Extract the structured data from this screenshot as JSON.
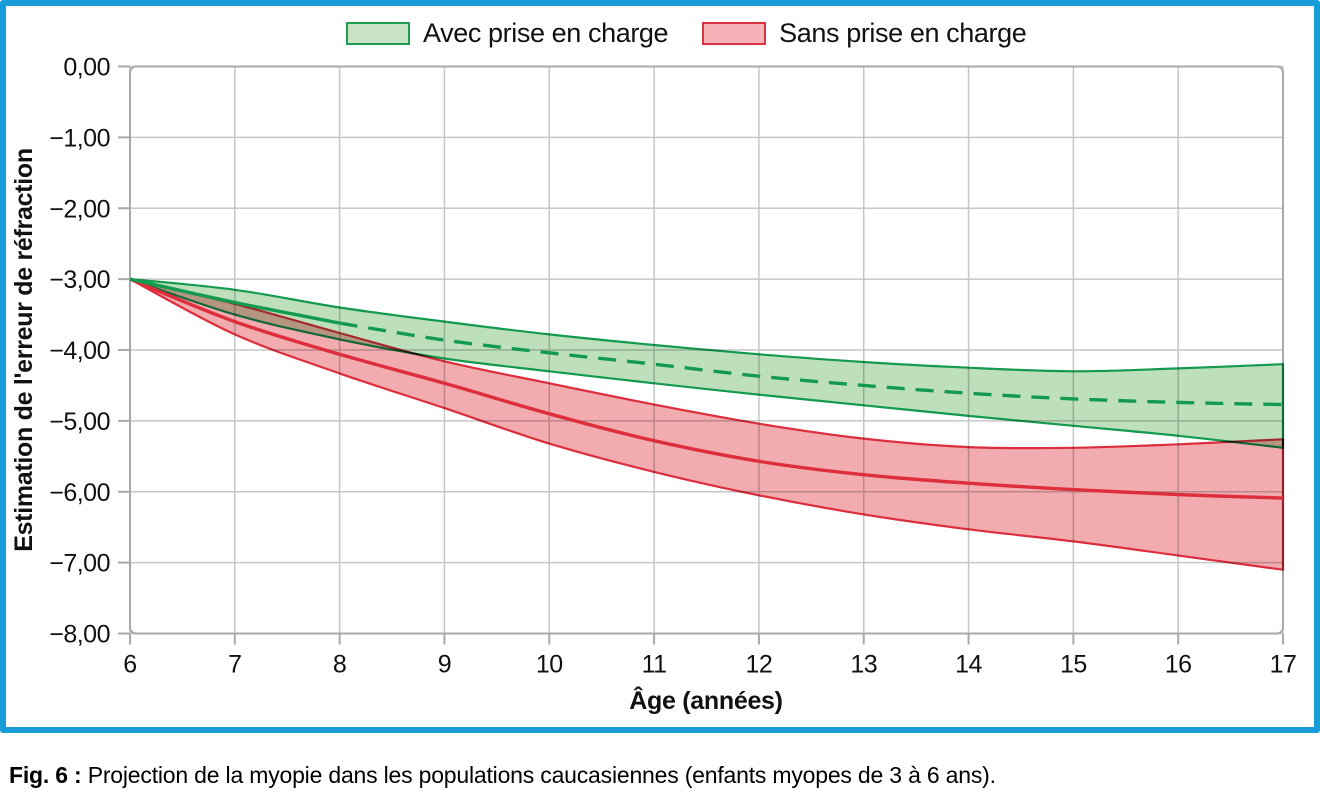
{
  "figure": {
    "border_color": "#189dd9",
    "caption_label": "Fig. 6 :",
    "caption_text": " Projection de la myopie dans les populations caucasiennes (enfants myopes de 3 à 6 ans)."
  },
  "legend": [
    {
      "label": "Avec prise en charge",
      "fill": "#c9e4c5",
      "stroke": "#1f9e51"
    },
    {
      "label": "Sans prise en charge",
      "fill": "#f5b3b8",
      "stroke": "#da3340"
    }
  ],
  "chart_data": {
    "type": "area",
    "title": "",
    "xlabel": "Âge (années)",
    "ylabel": "Estimation de l'erreur de réfraction",
    "xlim": [
      6,
      17
    ],
    "ylim": [
      0,
      -8
    ],
    "grid": true,
    "legend_position": "top",
    "x_ticks": [
      6,
      7,
      8,
      9,
      10,
      11,
      12,
      13,
      14,
      15,
      16,
      17
    ],
    "y_ticks": [
      0,
      -1,
      -2,
      -3,
      -4,
      -5,
      -6,
      -7,
      -8
    ],
    "y_tick_labels": [
      "0,00",
      "−1,00",
      "−2,00",
      "−3,00",
      "−4,00",
      "−5,00",
      "−6,00",
      "−7,00",
      "−8,00"
    ],
    "x": [
      6,
      7,
      8,
      9,
      10,
      11,
      12,
      13,
      14,
      15,
      16,
      17
    ],
    "series": [
      {
        "name": "Avec prise en charge",
        "line_style": "dashed",
        "solid_until": 8,
        "line_color": "#149a4e",
        "fill_color": "#bedfbb",
        "center": [
          -3.0,
          -3.33,
          -3.62,
          -3.86,
          -4.04,
          -4.2,
          -4.37,
          -4.5,
          -4.61,
          -4.69,
          -4.74,
          -4.77
        ],
        "upper": [
          -3.0,
          -3.15,
          -3.4,
          -3.6,
          -3.78,
          -3.93,
          -4.06,
          -4.17,
          -4.25,
          -4.3,
          -4.26,
          -4.2
        ],
        "lower": [
          -3.0,
          -3.5,
          -3.85,
          -4.12,
          -4.3,
          -4.47,
          -4.63,
          -4.78,
          -4.93,
          -5.07,
          -5.21,
          -5.38
        ]
      },
      {
        "name": "Sans prise en charge",
        "line_style": "solid",
        "line_color": "#dc2e3c",
        "fill_color": "#f2abaf",
        "center": [
          -3.0,
          -3.6,
          -4.06,
          -4.47,
          -4.9,
          -5.28,
          -5.57,
          -5.76,
          -5.88,
          -5.97,
          -6.04,
          -6.09
        ],
        "upper": [
          -3.0,
          -3.35,
          -3.76,
          -4.16,
          -4.47,
          -4.77,
          -5.04,
          -5.25,
          -5.37,
          -5.38,
          -5.33,
          -5.26
        ],
        "lower": [
          -3.0,
          -3.78,
          -4.33,
          -4.82,
          -5.32,
          -5.72,
          -6.05,
          -6.32,
          -6.53,
          -6.7,
          -6.9,
          -7.1
        ]
      }
    ]
  }
}
